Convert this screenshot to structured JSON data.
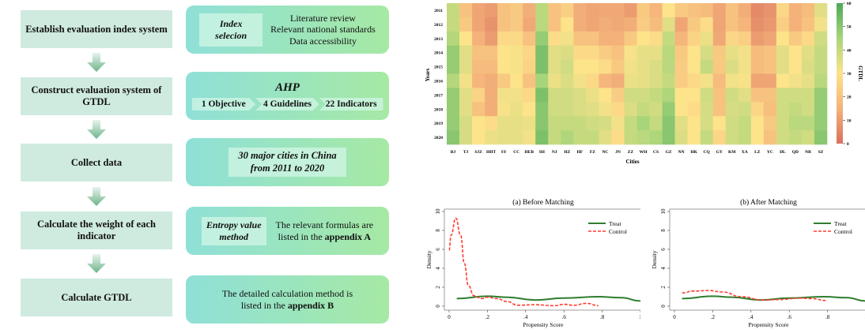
{
  "flowchart": {
    "steps": [
      "Establish evaluation index system",
      "Construct evaluation system of GTDL",
      "Collect data",
      "Calculate the weight of each indicator",
      "Calculate GTDL"
    ],
    "details": {
      "index": {
        "tag_line1": "Index",
        "tag_line2": "selecion",
        "lines": [
          "Literature review",
          "Relevant national standards",
          "Data accessibility"
        ]
      },
      "ahp": {
        "title": "AHP",
        "levels": [
          "1 Objective",
          "4 Guidelines",
          "22 Indicators"
        ]
      },
      "collect": {
        "line1": "30 major cities in China",
        "line2": "from 2011 to 2020"
      },
      "entropy": {
        "tag_line1": "Entropy value",
        "tag_line2": "method",
        "line1": "The relevant formulas are",
        "line2_prefix": "listed in the ",
        "line2_bold": "appendix A"
      },
      "gtdl": {
        "line1": "The detailed calculation method is",
        "line2_prefix": "listed in the ",
        "line2_bold": "appendix B"
      }
    }
  },
  "chart_data": [
    {
      "type": "heatmap",
      "xlabel": "Cities",
      "ylabel": "Years",
      "colorbar_label": "GTDL",
      "colorbar_ticks": [
        "0",
        "10",
        "20",
        "30",
        "40",
        "50",
        "60"
      ],
      "range": [
        0,
        60
      ],
      "colors": {
        "low": "#d9705e",
        "mid": "#fde38a",
        "high": "#4ba858"
      },
      "x": [
        "BJ",
        "TJ",
        "SJZ",
        "HHT",
        "SY",
        "CC",
        "HEB",
        "SH",
        "NJ",
        "HZ",
        "HF",
        "FZ",
        "NC",
        "JN",
        "ZZ",
        "WH",
        "CS",
        "GZ",
        "NN",
        "HK",
        "CQ",
        "GY",
        "KM",
        "XA",
        "LZ",
        "YC",
        "DL",
        "QD",
        "NB",
        "SZ"
      ],
      "y": [
        "2011",
        "2012",
        "2013",
        "2014",
        "2015",
        "2016",
        "2017",
        "2018",
        "2019",
        "2020"
      ],
      "values_by_city": [
        [
          40,
          40,
          43,
          48,
          48,
          43,
          48,
          48,
          48,
          50
        ],
        [
          20,
          22,
          30,
          35,
          35,
          32,
          35,
          35,
          37,
          37
        ],
        [
          12,
          12,
          15,
          20,
          18,
          16,
          25,
          20,
          30,
          30
        ],
        [
          10,
          8,
          10,
          20,
          18,
          14,
          14,
          14,
          28,
          33
        ],
        [
          20,
          20,
          27,
          30,
          30,
          22,
          32,
          31,
          34,
          34
        ],
        [
          22,
          22,
          27,
          31,
          31,
          30,
          32,
          33,
          34,
          34
        ],
        [
          14,
          13,
          20,
          26,
          25,
          20,
          27,
          30,
          33,
          32
        ],
        [
          42,
          42,
          48,
          52,
          52,
          45,
          52,
          50,
          50,
          52
        ],
        [
          20,
          20,
          28,
          35,
          35,
          33,
          38,
          38,
          40,
          40
        ],
        [
          24,
          30,
          32,
          36,
          38,
          36,
          38,
          38,
          40,
          44
        ],
        [
          14,
          14,
          20,
          27,
          30,
          32,
          36,
          36,
          40,
          40
        ],
        [
          12,
          12,
          20,
          27,
          30,
          27,
          33,
          35,
          38,
          40
        ],
        [
          13,
          14,
          15,
          23,
          28,
          16,
          30,
          32,
          37,
          35
        ],
        [
          13,
          13,
          15,
          20,
          22,
          14,
          23,
          27,
          32,
          28
        ],
        [
          10,
          14,
          22,
          31,
          32,
          33,
          38,
          36,
          40,
          40
        ],
        [
          22,
          23,
          30,
          34,
          34,
          34,
          38,
          40,
          45,
          42
        ],
        [
          16,
          18,
          28,
          34,
          36,
          36,
          40,
          38,
          40,
          44
        ],
        [
          30,
          35,
          40,
          42,
          42,
          40,
          44,
          48,
          50,
          50
        ],
        [
          22,
          12,
          16,
          22,
          23,
          23,
          30,
          30,
          35,
          36
        ],
        [
          20,
          22,
          25,
          30,
          30,
          27,
          30,
          28,
          30,
          30
        ],
        [
          18,
          28,
          33,
          37,
          40,
          32,
          38,
          37,
          37,
          40
        ],
        [
          12,
          12,
          13,
          22,
          22,
          18,
          20,
          20,
          30,
          26
        ],
        [
          20,
          20,
          26,
          34,
          36,
          32,
          38,
          37,
          38,
          38
        ],
        [
          14,
          16,
          24,
          32,
          32,
          31,
          35,
          38,
          40,
          40
        ],
        [
          6,
          7,
          10,
          18,
          18,
          12,
          20,
          26,
          30,
          30
        ],
        [
          8,
          9,
          12,
          20,
          20,
          12,
          20,
          19,
          22,
          20
        ],
        [
          26,
          24,
          30,
          35,
          35,
          30,
          38,
          38,
          38,
          38
        ],
        [
          15,
          15,
          22,
          30,
          30,
          32,
          38,
          40,
          42,
          40
        ],
        [
          18,
          20,
          27,
          35,
          36,
          34,
          38,
          38,
          42,
          38
        ],
        [
          35,
          32,
          38,
          40,
          40,
          42,
          48,
          48,
          48,
          50
        ]
      ]
    },
    {
      "type": "line",
      "title": "(a) Before Matching",
      "xlabel": "Propensity Score",
      "ylabel": "Density",
      "xlim": [
        0,
        1
      ],
      "ylim": [
        0,
        10
      ],
      "xticks": [
        "0",
        ".2",
        ".4",
        ".6",
        ".8",
        "1"
      ],
      "yticks": [
        "0",
        "2",
        "4",
        "6",
        "8",
        "10"
      ],
      "legend": "top-right",
      "series": [
        {
          "name": "Treat",
          "color": "#2e7d2e",
          "style": "solid",
          "x": [
            0.04,
            0.2,
            0.3,
            0.45,
            0.6,
            0.78,
            0.9,
            1.0
          ],
          "y": [
            0.8,
            1.05,
            0.95,
            0.65,
            0.85,
            1.0,
            0.9,
            0.55
          ]
        },
        {
          "name": "Control",
          "color": "#ff3b30",
          "style": "dashed",
          "x": [
            0,
            0.01,
            0.035,
            0.06,
            0.08,
            0.1,
            0.13,
            0.17,
            0.2,
            0.25,
            0.3,
            0.36,
            0.45,
            0.55,
            0.6,
            0.65,
            0.72,
            0.78
          ],
          "y": [
            5.9,
            7.5,
            9.3,
            7.5,
            4.5,
            2.2,
            1.1,
            0.8,
            0.95,
            0.8,
            0.5,
            0.1,
            0.15,
            0.05,
            0.2,
            0.1,
            0.3,
            0.05
          ]
        }
      ]
    },
    {
      "type": "line",
      "title": "(b) After Matching",
      "xlabel": "Propensity Score",
      "ylabel": "Density",
      "xlim": [
        0,
        1
      ],
      "ylim": [
        0,
        10
      ],
      "xticks": [
        "0",
        ".2",
        ".4",
        ".6",
        ".8",
        "1"
      ],
      "yticks": [
        "0",
        "2",
        "4",
        "6",
        "8",
        "10"
      ],
      "legend": "top-right",
      "series": [
        {
          "name": "Treat",
          "color": "#2e7d2e",
          "style": "solid",
          "x": [
            0.04,
            0.2,
            0.3,
            0.45,
            0.6,
            0.78,
            0.9,
            1.0
          ],
          "y": [
            0.8,
            1.05,
            0.95,
            0.65,
            0.85,
            1.0,
            0.9,
            0.55
          ]
        },
        {
          "name": "Control",
          "color": "#ff3b30",
          "style": "dashed",
          "x": [
            0.04,
            0.1,
            0.18,
            0.25,
            0.35,
            0.46,
            0.55,
            0.65,
            0.72,
            0.79
          ],
          "y": [
            1.4,
            1.6,
            1.65,
            1.5,
            1.0,
            0.65,
            0.7,
            0.85,
            0.8,
            0.6
          ]
        }
      ]
    }
  ]
}
